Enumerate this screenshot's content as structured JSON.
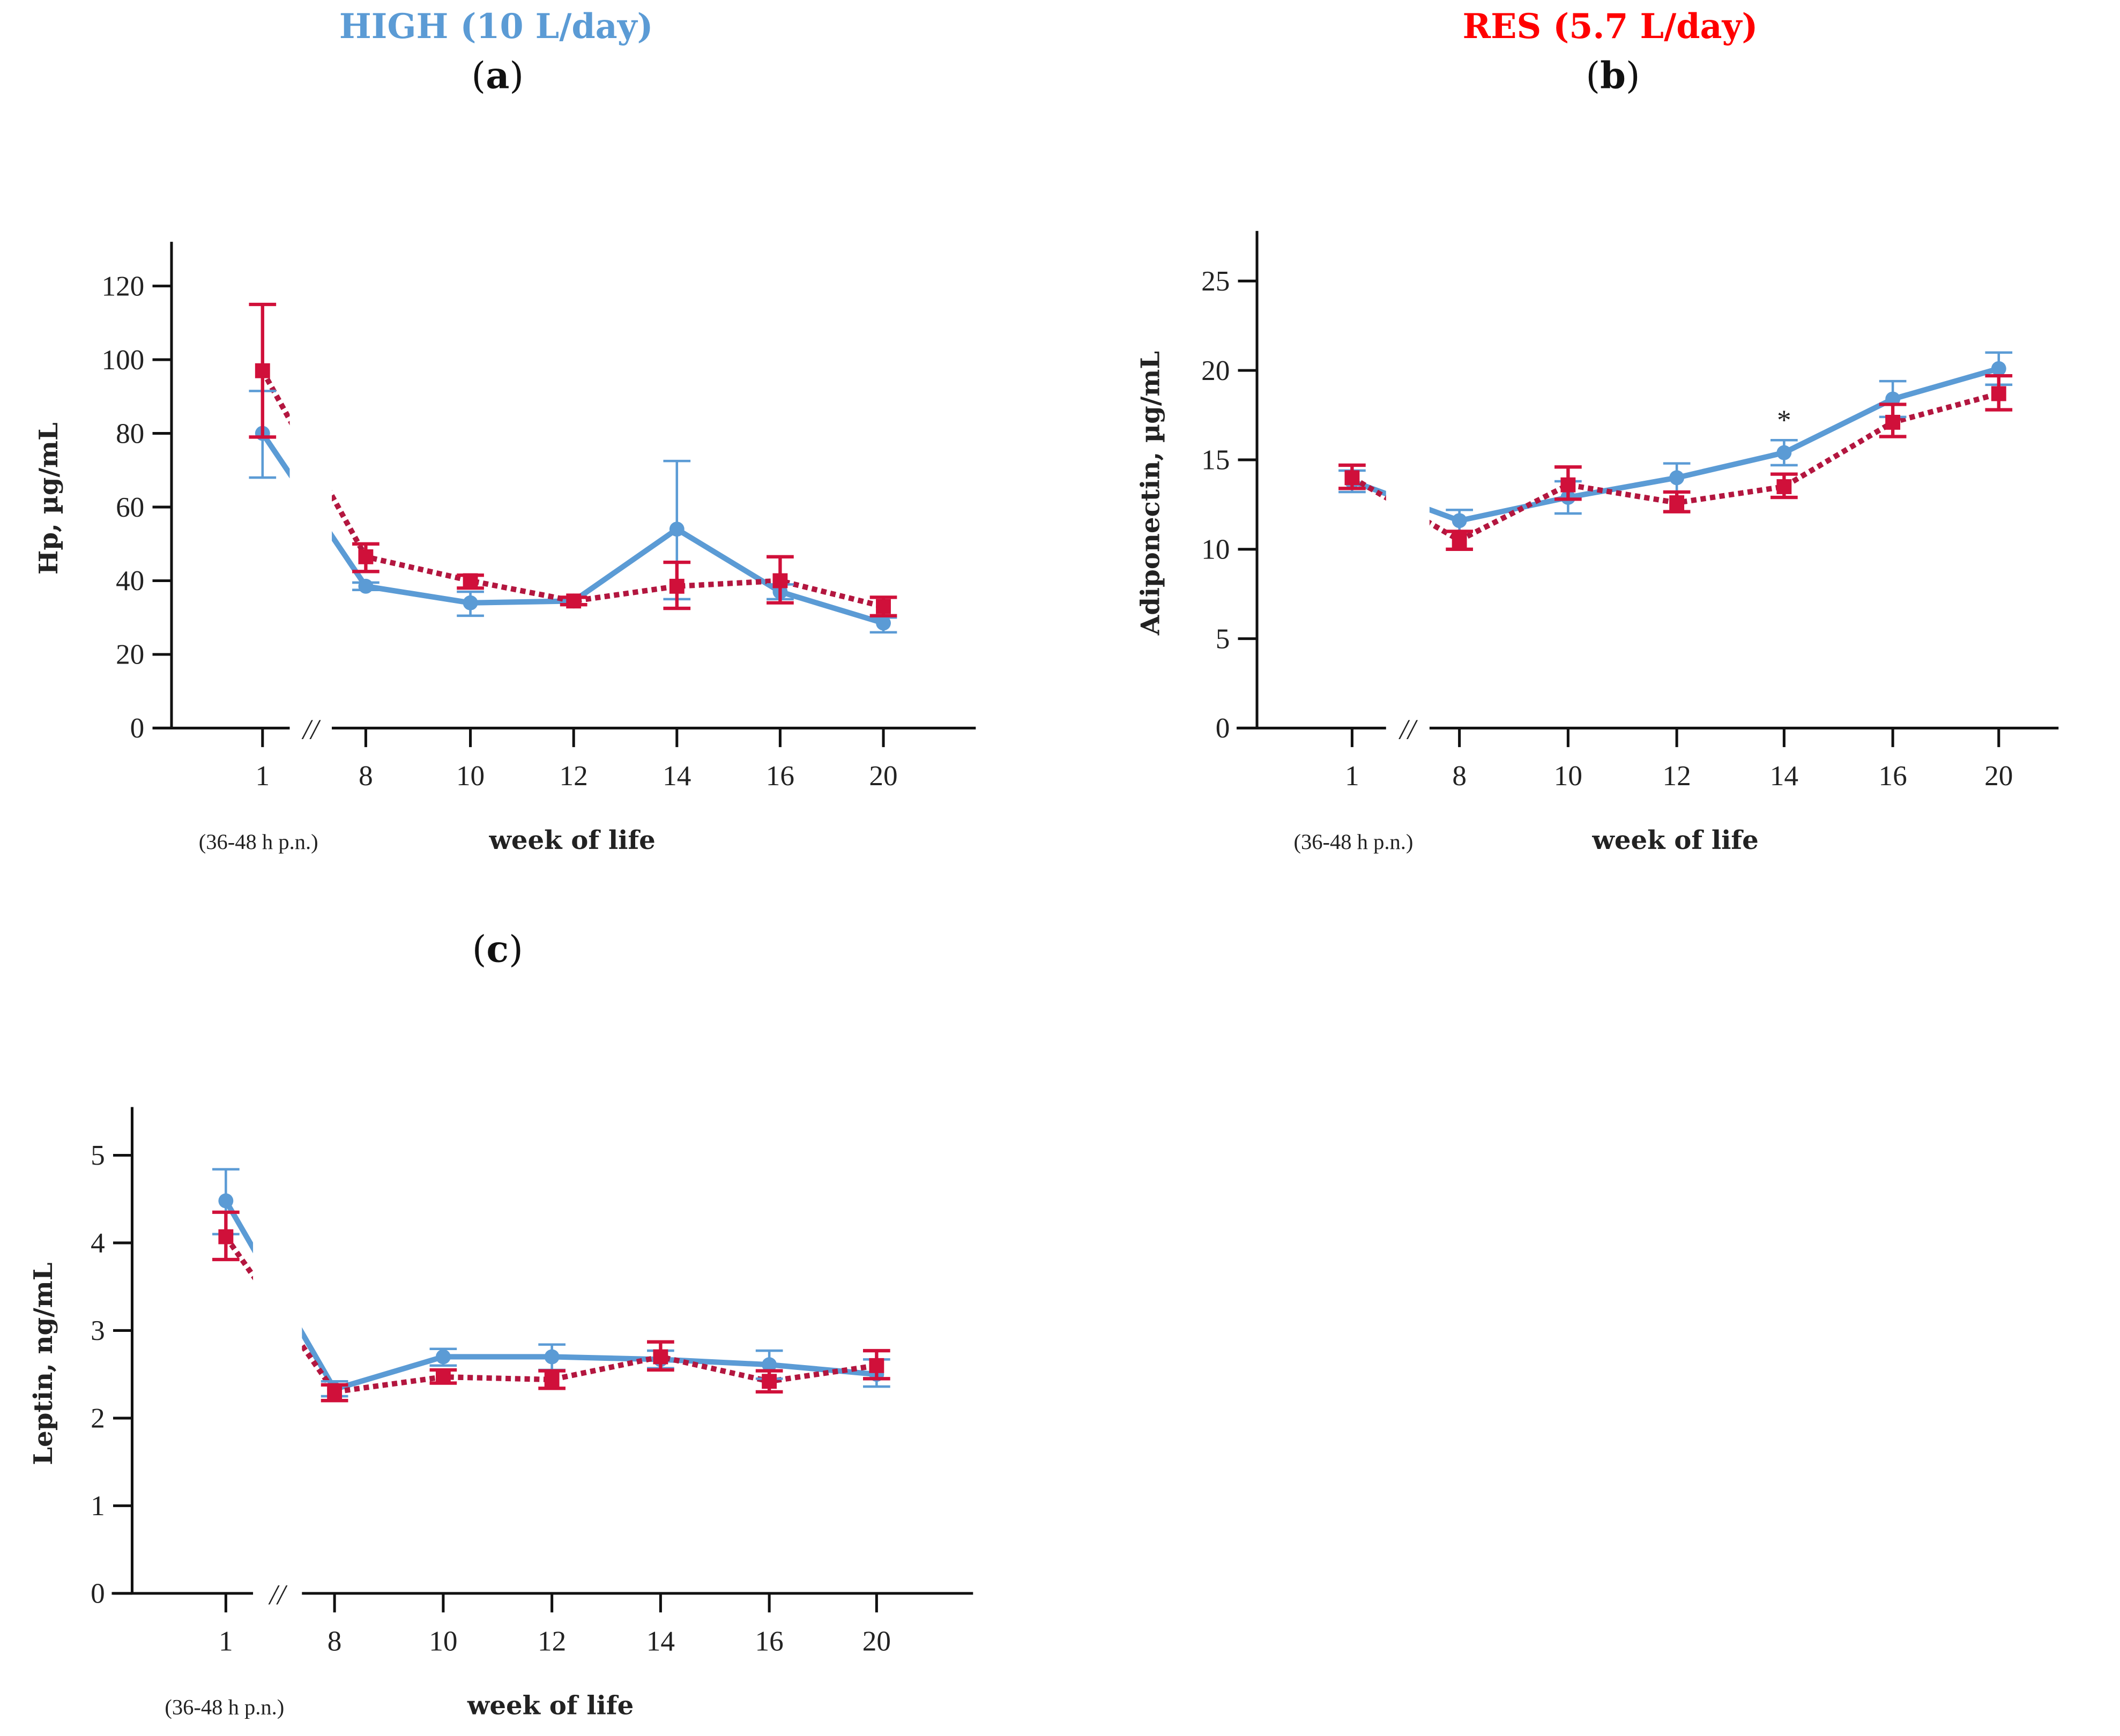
{
  "header": {
    "high_title": "HIGH (10 L/day)",
    "res_title": "RES (5.7 L/day)",
    "high_color": "#5b9bd5",
    "res_color": "#ff0000"
  },
  "chart_data": [
    {
      "type": "line",
      "panel": "a",
      "panel_open": "(",
      "panel_letter": "a",
      "panel_close": ")",
      "ylabel": "Hp, µg/mL",
      "xlabel": "week of life",
      "x_note": "(36-48 h p.n.)",
      "categories": [
        "1",
        "8",
        "10",
        "12",
        "14",
        "16",
        "20"
      ],
      "yticks": [
        0,
        20,
        40,
        60,
        80,
        100,
        120
      ],
      "ylim": [
        0,
        132
      ],
      "axis_break": "//",
      "annotations": [],
      "series": [
        {
          "name": "HIGH",
          "color": "#5b9bd5",
          "style": "solid",
          "marker": "circle",
          "values": [
            80,
            38.5,
            34,
            34.5,
            54,
            37,
            28.5
          ],
          "err_low": [
            68,
            37.5,
            30.5,
            33.5,
            35,
            35,
            26
          ],
          "err_high": [
            91.5,
            39.5,
            37,
            35.5,
            72.5,
            39,
            30
          ]
        },
        {
          "name": "RES",
          "color": "#d0103a",
          "style": "dotted",
          "marker": "square",
          "values": [
            97,
            46.5,
            40,
            34.5,
            38.5,
            40,
            33
          ],
          "err_low": [
            79,
            42.5,
            38,
            33.5,
            32.5,
            34,
            30.5
          ],
          "err_high": [
            115,
            50,
            41.5,
            35.5,
            45,
            46.5,
            35.5
          ]
        }
      ]
    },
    {
      "type": "line",
      "panel": "b",
      "panel_open": "(",
      "panel_letter": "b",
      "panel_close": ")",
      "ylabel": "Adiponectin, µg/mL",
      "xlabel": "week of life",
      "x_note": "(36-48 h p.n.)",
      "categories": [
        "1",
        "8",
        "10",
        "12",
        "14",
        "16",
        "20"
      ],
      "yticks": [
        0,
        5,
        10,
        15,
        20,
        25
      ],
      "ylim": [
        0,
        27.8
      ],
      "axis_break": "//",
      "annotations": [
        {
          "category": "14",
          "text": "*",
          "y": 17.3
        }
      ],
      "series": [
        {
          "name": "HIGH",
          "color": "#5b9bd5",
          "style": "solid",
          "marker": "circle",
          "values": [
            13.8,
            11.6,
            12.9,
            14,
            15.4,
            18.4,
            20.1
          ],
          "err_low": [
            13.2,
            11,
            12,
            13.2,
            14.7,
            17.4,
            19.2
          ],
          "err_high": [
            14.4,
            12.2,
            13.8,
            14.8,
            16.1,
            19.4,
            21
          ]
        },
        {
          "name": "RES",
          "color": "#d0103a",
          "style": "dotted",
          "marker": "square",
          "values": [
            14,
            10.5,
            13.6,
            12.6,
            13.5,
            17.1,
            18.7
          ],
          "err_low": [
            13.4,
            10,
            12.8,
            12.1,
            12.9,
            16.3,
            17.8
          ],
          "err_high": [
            14.7,
            11,
            14.6,
            13.2,
            14.2,
            18.1,
            19.7
          ]
        }
      ]
    },
    {
      "type": "line",
      "panel": "c",
      "panel_open": "(",
      "panel_letter": "c",
      "panel_close": ")",
      "ylabel": "Leptin, ng/mL",
      "xlabel": "week of life",
      "x_note": "(36-48 h p.n.)",
      "categories": [
        "1",
        "8",
        "10",
        "12",
        "14",
        "16",
        "20"
      ],
      "yticks": [
        0,
        1,
        2,
        3,
        4,
        5
      ],
      "ylim": [
        0,
        5.55
      ],
      "axis_break": "//",
      "annotations": [],
      "series": [
        {
          "name": "HIGH",
          "color": "#5b9bd5",
          "style": "solid",
          "marker": "circle",
          "values": [
            4.48,
            2.33,
            2.7,
            2.7,
            2.67,
            2.61,
            2.5
          ],
          "err_low": [
            4.1,
            2.25,
            2.6,
            2.55,
            2.57,
            2.45,
            2.36
          ],
          "err_high": [
            4.84,
            2.42,
            2.79,
            2.84,
            2.77,
            2.77,
            2.67
          ]
        },
        {
          "name": "RES",
          "color": "#d0103a",
          "style": "dotted",
          "marker": "square",
          "values": [
            4.07,
            2.3,
            2.47,
            2.44,
            2.7,
            2.42,
            2.6
          ],
          "err_low": [
            3.81,
            2.2,
            2.4,
            2.34,
            2.55,
            2.3,
            2.45
          ],
          "err_high": [
            4.35,
            2.38,
            2.55,
            2.54,
            2.87,
            2.54,
            2.77
          ]
        }
      ]
    }
  ]
}
